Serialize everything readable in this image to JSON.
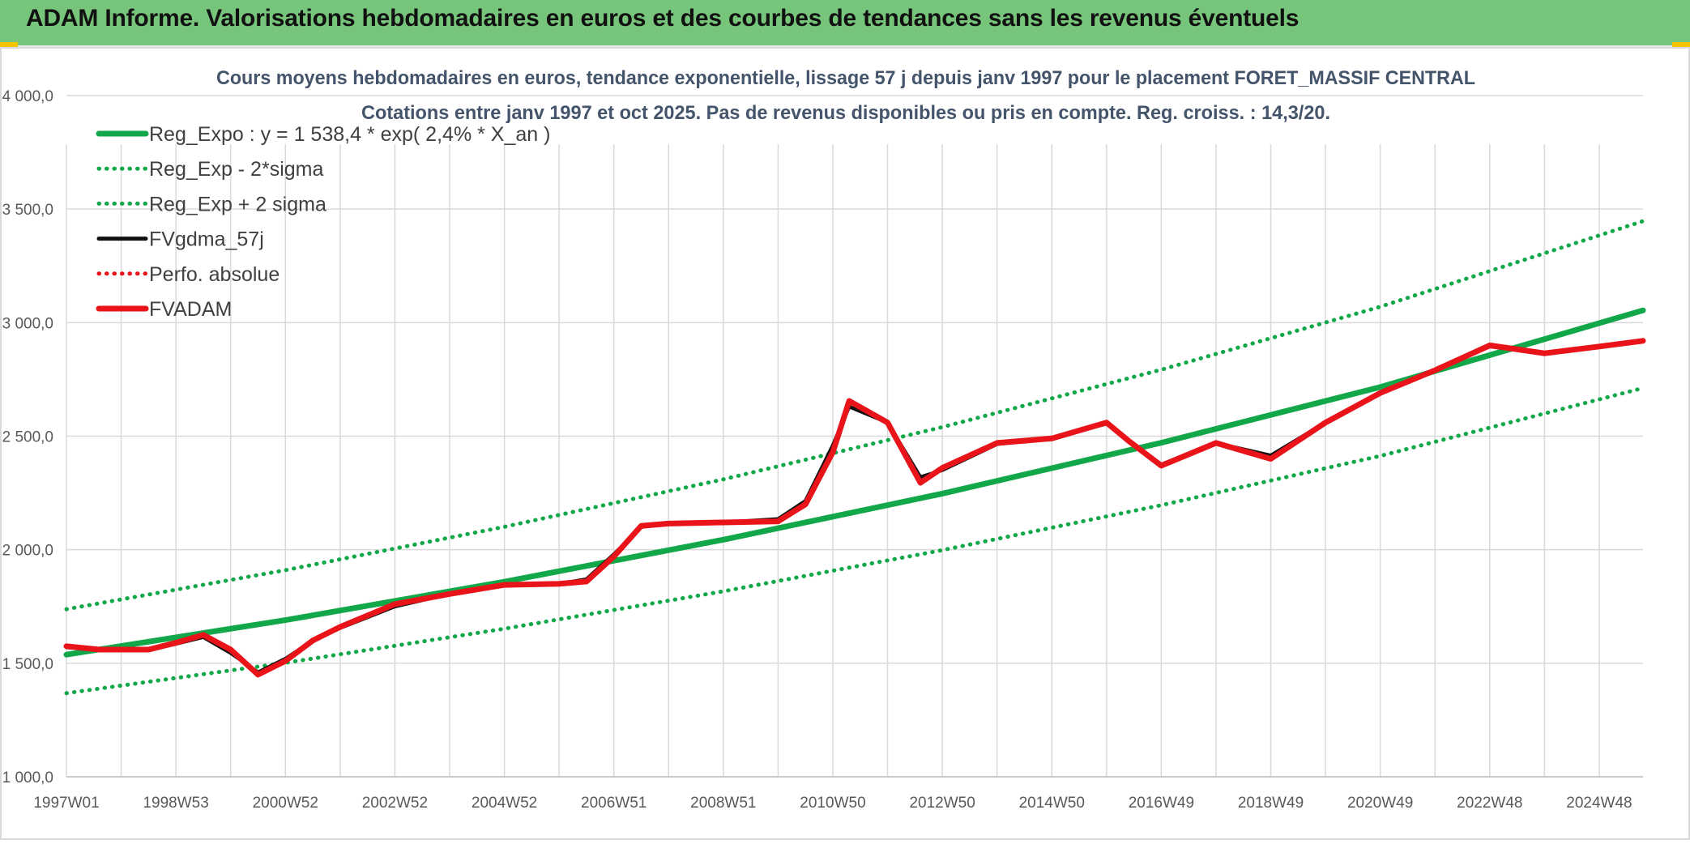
{
  "banner": {
    "title": "ADAM Informe. Valorisations hebdomadaires en euros et des courbes de tendances sans les revenus éventuels",
    "background": "#77c47b"
  },
  "chart_data": {
    "type": "line",
    "title": "Cours moyens hebdomadaires en euros, tendance exponentielle, lissage 57 j depuis janv 1997 pour le placement FORET_MASSIF CENTRAL",
    "subtitle": "Cotations entre janv 1997 et oct 2025. Pas de revenus disponibles ou pris en compte. Reg. croiss. : 14,3/20.",
    "xlabel": "",
    "ylabel": "",
    "ylim": [
      1000,
      4000
    ],
    "y_ticks": [
      1000,
      1500,
      2000,
      2500,
      3000,
      3500,
      4000
    ],
    "y_tick_labels": [
      "1 000,0",
      "1 500,0",
      "2 000,0",
      "2 500,0",
      "3 000,0",
      "3 500,0",
      "4 000,0"
    ],
    "xlim": [
      1997.0,
      2025.8
    ],
    "x_ticks": [
      1997.0,
      1999.0,
      2001.0,
      2003.0,
      2005.0,
      2007.0,
      2009.0,
      2011.0,
      2013.0,
      2015.0,
      2017.0,
      2019.0,
      2021.0,
      2023.0,
      2025.0
    ],
    "x_tick_labels": [
      "1997W01",
      "1998W53",
      "2000W52",
      "2002W52",
      "2004W52",
      "2006W51",
      "2008W51",
      "2010W50",
      "2012W50",
      "2014W50",
      "2016W49",
      "2018W49",
      "2020W49",
      "2022W48",
      "2024W48"
    ],
    "grid": true,
    "legend_position": "top-left",
    "series": [
      {
        "name": "Reg_Expo : y = 1 538,4 * exp( 2,4% *  X_an )",
        "style": "solid-thick",
        "color": "#12a84a",
        "x": [
          1997.0,
          2001.0,
          2005.0,
          2009.0,
          2013.0,
          2017.0,
          2021.0,
          2025.8
        ],
        "values": [
          1538,
          1690,
          1859,
          2044,
          2247,
          2471,
          2716,
          3054
        ]
      },
      {
        "name": "Reg_Exp - 2*sigma",
        "style": "dotted",
        "color": "#12a84a",
        "x": [
          1997.0,
          2001.0,
          2005.0,
          2009.0,
          2013.0,
          2017.0,
          2021.0,
          2025.8
        ],
        "values": [
          1368,
          1502,
          1652,
          1817,
          1998,
          2196,
          2413,
          2712
        ]
      },
      {
        "name": "Reg_Exp + 2 sigma",
        "style": "dotted",
        "color": "#12a84a",
        "x": [
          1997.0,
          2001.0,
          2005.0,
          2009.0,
          2013.0,
          2017.0,
          2021.0,
          2025.8
        ],
        "values": [
          1738,
          1910,
          2101,
          2310,
          2540,
          2793,
          3070,
          3447
        ]
      },
      {
        "name": "FVgdma_57j",
        "style": "solid",
        "color": "#111111",
        "x": [
          1997.0,
          1997.6,
          1998.0,
          1998.5,
          1999.0,
          1999.5,
          2000.0,
          2000.5,
          2001.0,
          2001.5,
          2002.0,
          2003.0,
          2004.0,
          2005.0,
          2006.0,
          2006.5,
          2007.0,
          2007.5,
          2008.0,
          2009.0,
          2010.0,
          2010.5,
          2011.0,
          2011.3,
          2012.0,
          2012.6,
          2013.0,
          2014.0,
          2015.0,
          2016.0,
          2016.4,
          2017.0,
          2018.0,
          2019.0,
          2020.0,
          2021.0,
          2022.0,
          2023.0,
          2024.0,
          2025.0,
          2025.8
        ],
        "values": [
          1570,
          1560,
          1560,
          1560,
          1585,
          1615,
          1545,
          1460,
          1520,
          1600,
          1655,
          1750,
          1805,
          1845,
          1850,
          1870,
          1980,
          2100,
          2115,
          2120,
          2135,
          2215,
          2460,
          2630,
          2560,
          2320,
          2350,
          2465,
          2490,
          2555,
          2480,
          2375,
          2470,
          2415,
          2560,
          2690,
          2790,
          2895,
          2865,
          2895,
          2920
        ]
      },
      {
        "name": "Perfo. absolue",
        "style": "dotted",
        "color": "#e8141a",
        "x": [],
        "values": []
      },
      {
        "name": "FVADAM",
        "style": "solid-thick",
        "color": "#e8141a",
        "x": [
          1997.0,
          1997.6,
          1998.0,
          1998.5,
          1999.0,
          1999.5,
          2000.0,
          2000.5,
          2001.0,
          2001.5,
          2002.0,
          2003.0,
          2004.0,
          2005.0,
          2006.0,
          2006.5,
          2007.0,
          2007.5,
          2008.0,
          2009.0,
          2010.0,
          2010.5,
          2011.0,
          2011.3,
          2012.0,
          2012.6,
          2013.0,
          2014.0,
          2015.0,
          2016.0,
          2016.4,
          2017.0,
          2018.0,
          2019.0,
          2020.0,
          2021.0,
          2022.0,
          2023.0,
          2024.0,
          2025.0,
          2025.8
        ],
        "values": [
          1575,
          1560,
          1560,
          1560,
          1590,
          1625,
          1560,
          1450,
          1510,
          1600,
          1660,
          1760,
          1805,
          1845,
          1850,
          1860,
          1970,
          2105,
          2115,
          2120,
          2125,
          2200,
          2430,
          2655,
          2560,
          2295,
          2360,
          2470,
          2490,
          2560,
          2480,
          2370,
          2470,
          2400,
          2560,
          2690,
          2790,
          2900,
          2865,
          2895,
          2920
        ]
      }
    ]
  }
}
